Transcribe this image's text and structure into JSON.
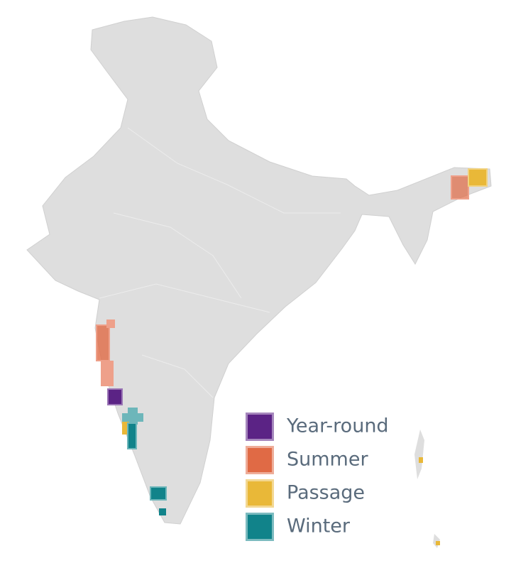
{
  "legend": [
    {
      "label": "Year-round",
      "color": "#5b2385"
    },
    {
      "label": "Summer",
      "color": "#e06a45"
    },
    {
      "label": "Passage",
      "color": "#e9b838"
    },
    {
      "label": "Winter",
      "color": "#11838a"
    }
  ]
}
